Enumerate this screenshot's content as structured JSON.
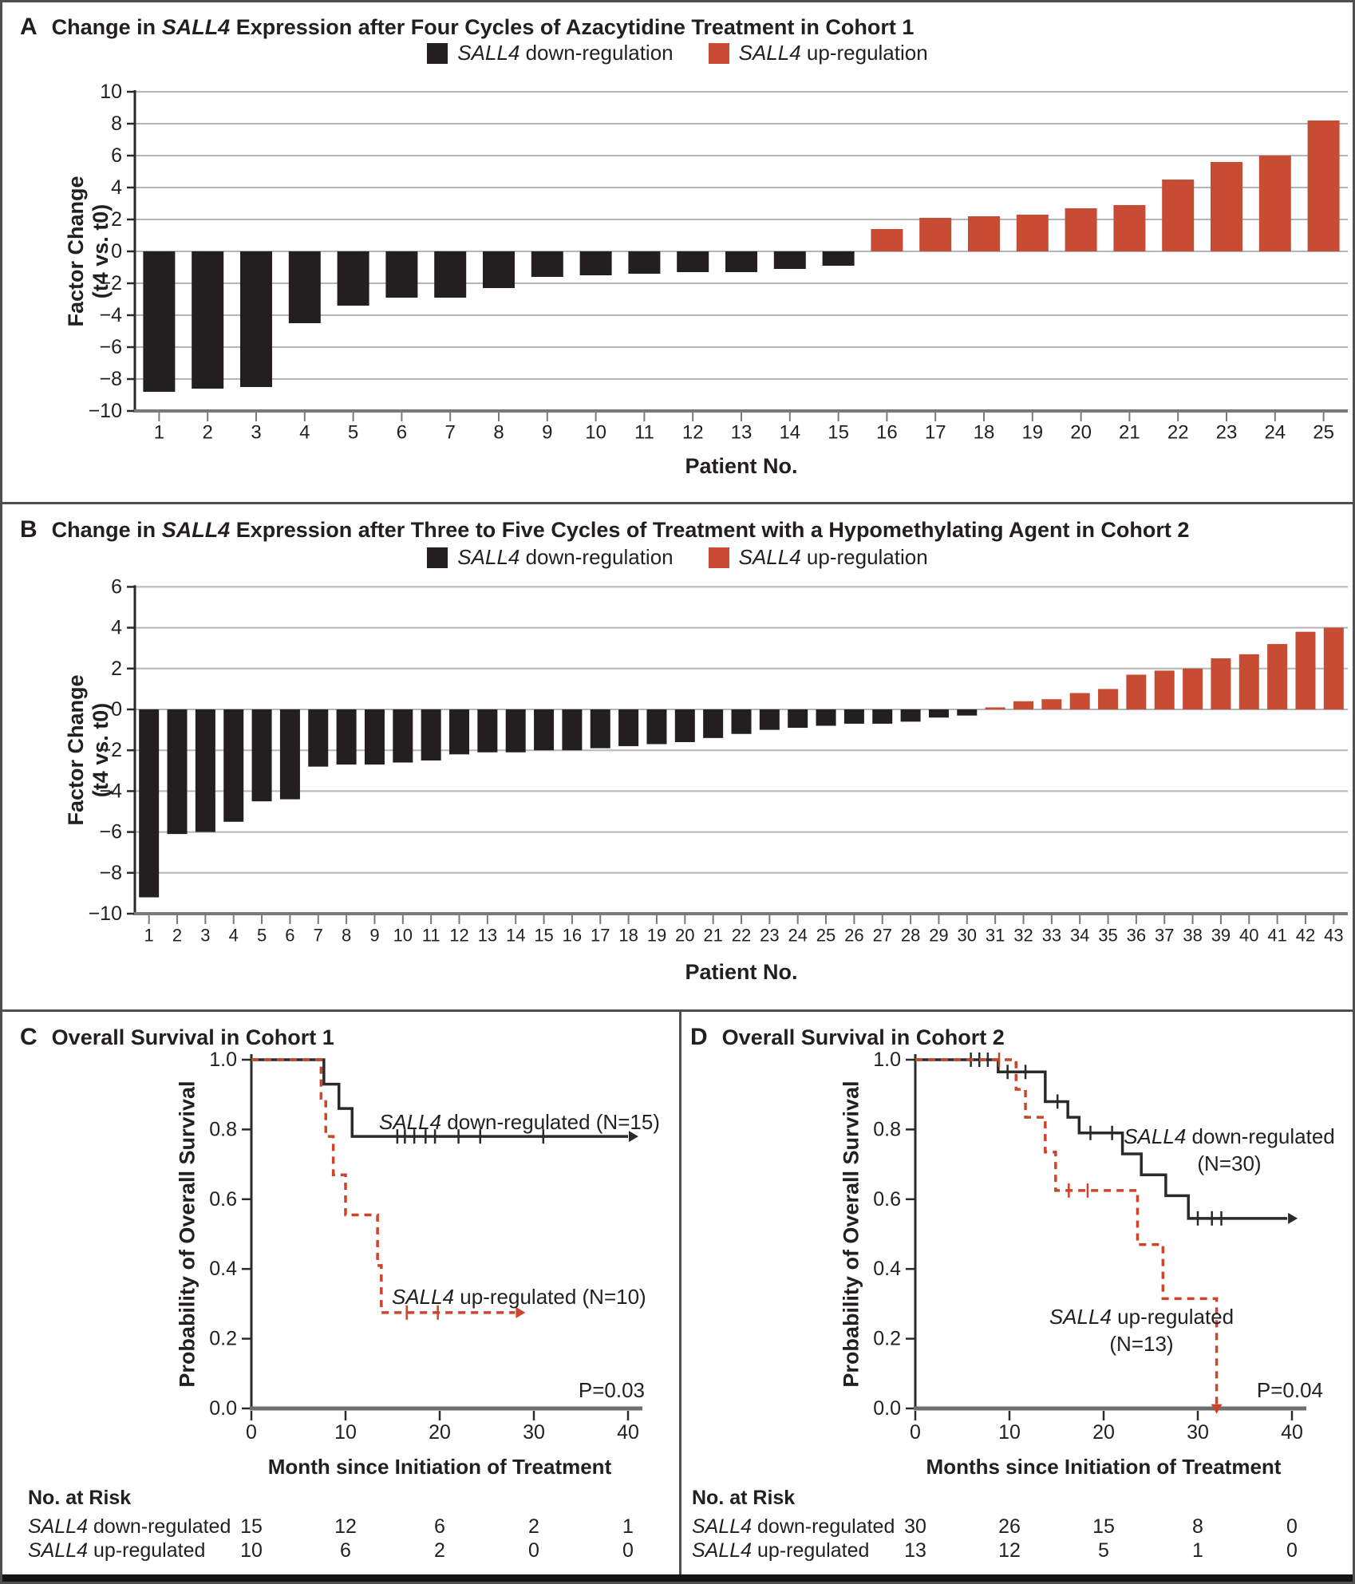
{
  "figure": {
    "legend": {
      "down": {
        "gene": "SALL4",
        "rest": " down-regulation",
        "color": "#231F20"
      },
      "up": {
        "gene": "SALL4",
        "rest": " up-regulation",
        "color": "#C84B33"
      }
    },
    "panels": {
      "a": {
        "letter": "A",
        "title_prefix": "Change in ",
        "gene": "SALL4",
        "title_rest": " Expression after Four Cycles of Azacytidine Treatment in Cohort 1",
        "ylabel_line1": "Factor Change",
        "ylabel_line2": "(t4 vs. t0)",
        "xlabel": "Patient No."
      },
      "b": {
        "letter": "B",
        "title_prefix": "Change in ",
        "gene": "SALL4",
        "title_rest": " Expression after Three to Five Cycles of Treatment with a Hypomethylating Agent in Cohort 2",
        "ylabel_line1": "Factor Change",
        "ylabel_line2": "(t4 vs. t0)",
        "xlabel": "Patient No."
      },
      "c": {
        "letter": "C",
        "title": "Overall Survival in Cohort 1",
        "ylabel": "Probability of Overall Survival",
        "xlabel": "Month since Initiation of Treatment",
        "curve_down": {
          "gene": "SALL4",
          "rest": " down-regulated (N=15)"
        },
        "curve_up": {
          "gene": "SALL4",
          "rest": " up-regulated (N=10)"
        },
        "p_value": "P=0.03",
        "risk_header": "No. at Risk",
        "risk_row1": {
          "gene": "SALL4",
          "rest": " down-regulated"
        },
        "risk_row2": {
          "gene": "SALL4",
          "rest": " up-regulated"
        }
      },
      "d": {
        "letter": "D",
        "title": "Overall Survival in Cohort 2",
        "ylabel": "Probability of Overall Survival",
        "xlabel": "Months since Initiation of Treatment",
        "curve_down": {
          "gene": "SALL4",
          "rest": " down-regulated",
          "n": "(N=30)"
        },
        "curve_up": {
          "gene": "SALL4",
          "rest": " up-regulated",
          "n": "(N=13)"
        },
        "p_value": "P=0.04",
        "risk_header": "No. at Risk",
        "risk_row1": {
          "gene": "SALL4",
          "rest": " down-regulated"
        },
        "risk_row2": {
          "gene": "SALL4",
          "rest": " up-regulated"
        }
      }
    }
  },
  "chart_data": [
    {
      "panel": "A",
      "type": "bar",
      "title": "Change in SALL4 Expression after Four Cycles of Azacytidine Treatment in Cohort 1",
      "xlabel": "Patient No.",
      "ylabel": "Factor Change (t4 vs. t0)",
      "ylim": [
        -10,
        10
      ],
      "ytick_step": 2,
      "grid": true,
      "legend": [
        "SALL4 down-regulation",
        "SALL4 up-regulation"
      ],
      "colors": {
        "down": "#231F20",
        "up": "#C84B33"
      },
      "categories": [
        1,
        2,
        3,
        4,
        5,
        6,
        7,
        8,
        9,
        10,
        11,
        12,
        13,
        14,
        15,
        16,
        17,
        18,
        19,
        20,
        21,
        22,
        23,
        24,
        25
      ],
      "values": [
        -8.8,
        -8.6,
        -8.5,
        -4.5,
        -3.4,
        -2.9,
        -2.9,
        -2.3,
        -1.6,
        -1.5,
        -1.4,
        -1.3,
        -1.3,
        -1.1,
        -0.9,
        1.4,
        2.1,
        2.2,
        2.3,
        2.7,
        2.9,
        4.5,
        5.6,
        6.0,
        8.2
      ]
    },
    {
      "panel": "B",
      "type": "bar",
      "title": "Change in SALL4 Expression after Three to Five Cycles of Treatment with a Hypomethylating Agent in Cohort 2",
      "xlabel": "Patient No.",
      "ylabel": "Factor Change (t4 vs. t0)",
      "ylim": [
        -10,
        6
      ],
      "ytick_step": 2,
      "grid": true,
      "legend": [
        "SALL4 down-regulation",
        "SALL4 up-regulation"
      ],
      "colors": {
        "down": "#231F20",
        "up": "#C84B33"
      },
      "categories": [
        1,
        2,
        3,
        4,
        5,
        6,
        7,
        8,
        9,
        10,
        11,
        12,
        13,
        14,
        15,
        16,
        17,
        18,
        19,
        20,
        21,
        22,
        23,
        24,
        25,
        26,
        27,
        28,
        29,
        30,
        31,
        32,
        33,
        34,
        35,
        36,
        37,
        38,
        39,
        40,
        41,
        42,
        43
      ],
      "values": [
        -9.2,
        -6.1,
        -6.0,
        -5.5,
        -4.5,
        -4.4,
        -2.8,
        -2.7,
        -2.7,
        -2.6,
        -2.5,
        -2.2,
        -2.1,
        -2.1,
        -2.0,
        -2.0,
        -1.9,
        -1.8,
        -1.7,
        -1.6,
        -1.4,
        -1.2,
        -1.0,
        -0.9,
        -0.8,
        -0.7,
        -0.7,
        -0.6,
        -0.4,
        -0.3,
        0.1,
        0.4,
        0.5,
        0.8,
        1.0,
        1.7,
        1.9,
        2.0,
        2.5,
        2.7,
        3.2,
        3.8,
        4.0
      ]
    },
    {
      "panel": "C",
      "type": "km",
      "title": "Overall Survival in Cohort 1",
      "xlabel": "Month since Initiation of Treatment",
      "ylabel": "Probability of Overall Survival",
      "xlim": [
        0,
        40
      ],
      "xticks": [
        0,
        10,
        20,
        30,
        40
      ],
      "ylim": [
        0,
        1
      ],
      "yticks": [
        0.0,
        0.2,
        0.4,
        0.6,
        0.8,
        1.0
      ],
      "p_value": "P=0.03",
      "series": [
        {
          "name": "SALL4 down-regulated",
          "n": 15,
          "color": "#2B2A29",
          "line": "solid",
          "steps": [
            [
              0,
              1.0
            ],
            [
              7.7,
              0.93
            ],
            [
              9.3,
              0.86
            ],
            [
              10.7,
              0.78
            ]
          ],
          "end": 40,
          "end_marker": "arrow-right",
          "censors": [
            [
              15.5,
              0.78
            ],
            [
              16.3,
              0.78
            ],
            [
              17.3,
              0.78
            ],
            [
              18.5,
              0.78
            ],
            [
              19.5,
              0.78
            ],
            [
              22,
              0.78
            ],
            [
              24.3,
              0.78
            ],
            [
              31,
              0.78
            ]
          ]
        },
        {
          "name": "SALL4 up-regulated",
          "n": 10,
          "color": "#CC4529",
          "line": "dashed",
          "steps": [
            [
              0,
              1.0
            ],
            [
              7.4,
              0.89
            ],
            [
              7.9,
              0.78
            ],
            [
              8.7,
              0.67
            ],
            [
              10,
              0.555
            ],
            [
              13.4,
              0.41
            ],
            [
              13.8,
              0.275
            ]
          ],
          "end": 28,
          "end_marker": "arrow-right",
          "censors": [
            [
              16.5,
              0.275
            ],
            [
              19.8,
              0.275
            ]
          ]
        }
      ],
      "at_risk": {
        "header": "No. at Risk",
        "times": [
          0,
          10,
          20,
          30,
          40
        ],
        "rows": [
          {
            "name": "SALL4 down-regulated",
            "values": [
              15,
              12,
              6,
              2,
              1
            ]
          },
          {
            "name": "SALL4 up-regulated",
            "values": [
              10,
              6,
              2,
              0,
              0
            ]
          }
        ]
      }
    },
    {
      "panel": "D",
      "type": "km",
      "title": "Overall Survival in Cohort 2",
      "xlabel": "Months since Initiation of Treatment",
      "ylabel": "Probability of Overall Survival",
      "xlim": [
        0,
        40
      ],
      "xticks": [
        0,
        10,
        20,
        30,
        40
      ],
      "ylim": [
        0,
        1
      ],
      "yticks": [
        0.0,
        0.2,
        0.4,
        0.6,
        0.8,
        1.0
      ],
      "p_value": "P=0.04",
      "series": [
        {
          "name": "SALL4 down-regulated",
          "n": 30,
          "color": "#2B2A29",
          "line": "solid",
          "steps": [
            [
              0,
              1.0
            ],
            [
              8.8,
              0.965
            ],
            [
              13.8,
              0.88
            ],
            [
              16.2,
              0.835
            ],
            [
              17.4,
              0.79
            ],
            [
              22,
              0.73
            ],
            [
              24,
              0.67
            ],
            [
              26.6,
              0.61
            ],
            [
              29,
              0.545
            ]
          ],
          "end": 39.5,
          "end_marker": "arrow-right",
          "censors": [
            [
              5.9,
              1.0
            ],
            [
              6.8,
              1.0
            ],
            [
              7.7,
              1.0
            ],
            [
              9.8,
              0.965
            ],
            [
              11.7,
              0.965
            ],
            [
              15.1,
              0.88
            ],
            [
              18.6,
              0.79
            ],
            [
              20.9,
              0.79
            ],
            [
              30,
              0.545
            ],
            [
              31.5,
              0.545
            ],
            [
              32.5,
              0.545
            ]
          ]
        },
        {
          "name": "SALL4 up-regulated",
          "n": 13,
          "color": "#CC4529",
          "line": "dashed",
          "steps": [
            [
              0,
              1.0
            ],
            [
              10.7,
              0.915
            ],
            [
              11.7,
              0.835
            ],
            [
              13.8,
              0.735
            ],
            [
              14.9,
              0.625
            ],
            [
              23.6,
              0.47
            ],
            [
              26.3,
              0.315
            ],
            [
              32,
              0.01
            ]
          ],
          "end": 32,
          "end_marker": "arrow-down",
          "censors": [
            [
              8.9,
              1.0
            ],
            [
              16.3,
              0.625
            ],
            [
              18.3,
              0.625
            ]
          ]
        }
      ],
      "at_risk": {
        "header": "No. at Risk",
        "times": [
          0,
          10,
          20,
          30,
          40
        ],
        "rows": [
          {
            "name": "SALL4 down-regulated",
            "values": [
              30,
              26,
              15,
              8,
              0
            ]
          },
          {
            "name": "SALL4 up-regulated",
            "values": [
              13,
              12,
              5,
              1,
              0
            ]
          }
        ]
      }
    }
  ]
}
